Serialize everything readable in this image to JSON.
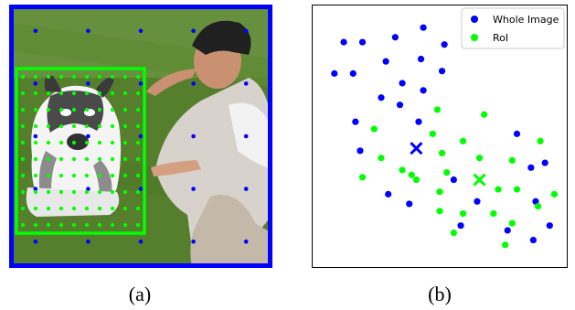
{
  "colors": {
    "whole_image": "#0000ff",
    "roi": "#00ff00",
    "grass": "#4f7a2a",
    "background_wall": "#6c8a46"
  },
  "captions": {
    "a": "(a)",
    "b": "(b)"
  },
  "photo_panel": {
    "icons": [
      "husky-dog-icon",
      "person-icon"
    ],
    "grid": {
      "whole_cols": [
        0.1,
        0.3,
        0.5,
        0.7,
        0.9
      ],
      "whole_rows": [
        0.1,
        0.3,
        0.5,
        0.7,
        0.9
      ],
      "roi_cols": [
        0.05,
        0.15,
        0.25,
        0.35,
        0.45,
        0.55,
        0.65,
        0.75,
        0.85,
        0.95
      ],
      "roi_rows": [
        0.05,
        0.15,
        0.25,
        0.35,
        0.45,
        0.55,
        0.65,
        0.75,
        0.85,
        0.95
      ]
    }
  },
  "chart_data": {
    "type": "scatter",
    "xlim": [
      0,
      1
    ],
    "ylim": [
      0,
      1
    ],
    "grid": false,
    "ticks": false,
    "legend_position": "top-right",
    "series": [
      {
        "name": "Whole Image",
        "color": "#0000ff",
        "marker": "circle",
        "points": [
          [
            0.43,
            0.95
          ],
          [
            0.31,
            0.91
          ],
          [
            0.09,
            0.89
          ],
          [
            0.17,
            0.89
          ],
          [
            0.52,
            0.88
          ],
          [
            0.42,
            0.82
          ],
          [
            0.27,
            0.81
          ],
          [
            0.05,
            0.76
          ],
          [
            0.13,
            0.76
          ],
          [
            0.51,
            0.77
          ],
          [
            0.34,
            0.72
          ],
          [
            0.43,
            0.69
          ],
          [
            0.25,
            0.66
          ],
          [
            0.33,
            0.63
          ],
          [
            0.14,
            0.56
          ],
          [
            0.41,
            0.56
          ],
          [
            0.83,
            0.51
          ],
          [
            0.16,
            0.44
          ],
          [
            0.89,
            0.37
          ],
          [
            0.95,
            0.39
          ],
          [
            0.56,
            0.32
          ],
          [
            0.28,
            0.26
          ],
          [
            0.37,
            0.22
          ],
          [
            0.66,
            0.23
          ],
          [
            0.91,
            0.23
          ],
          [
            0.79,
            0.11
          ],
          [
            0.59,
            0.13
          ],
          [
            0.97,
            0.13
          ],
          [
            0.9,
            0.07
          ]
        ],
        "centroid": [
          0.4,
          0.45
        ]
      },
      {
        "name": "RoI",
        "color": "#00ff00",
        "marker": "circle",
        "points": [
          [
            0.49,
            0.61
          ],
          [
            0.69,
            0.59
          ],
          [
            0.22,
            0.53
          ],
          [
            0.47,
            0.51
          ],
          [
            0.6,
            0.48
          ],
          [
            0.93,
            0.48
          ],
          [
            0.25,
            0.41
          ],
          [
            0.51,
            0.43
          ],
          [
            0.67,
            0.41
          ],
          [
            0.81,
            0.4
          ],
          [
            0.17,
            0.33
          ],
          [
            0.34,
            0.36
          ],
          [
            0.4,
            0.32
          ],
          [
            0.53,
            0.35
          ],
          [
            0.83,
            0.28
          ],
          [
            0.5,
            0.27
          ],
          [
            0.75,
            0.28
          ],
          [
            0.99,
            0.26
          ],
          [
            0.92,
            0.21
          ],
          [
            0.5,
            0.19
          ],
          [
            0.6,
            0.18
          ],
          [
            0.73,
            0.18
          ],
          [
            0.81,
            0.14
          ],
          [
            0.56,
            0.1
          ],
          [
            0.78,
            0.05
          ],
          [
            0.38,
            0.34
          ]
        ],
        "centroid": [
          0.67,
          0.32
        ]
      }
    ]
  }
}
